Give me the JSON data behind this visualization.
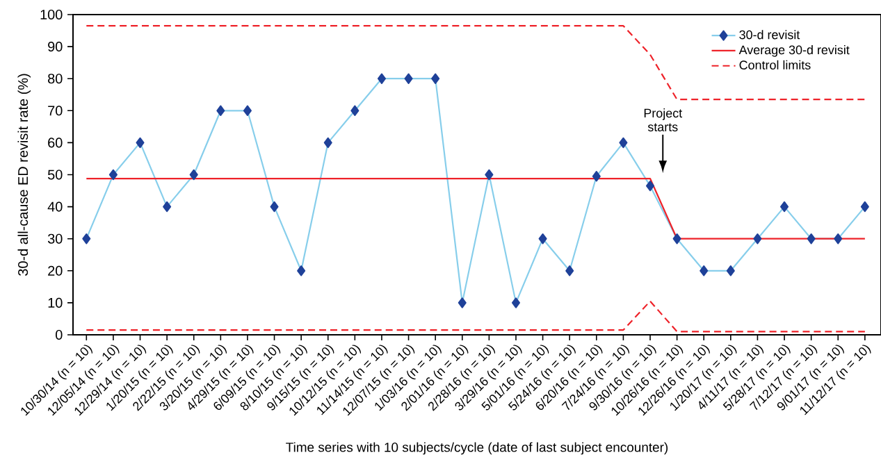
{
  "chart_data": {
    "type": "line",
    "xlabel": "Time series with 10 subjects/cycle (date of last subject encounter)",
    "ylabel": "30-d all-cause ED revisit rate (%)",
    "categories": [
      "10/30/14 (n = 10)",
      "12/05/14 (n = 10)",
      "12/29/14 (n = 10)",
      "1/20/15 (n = 10)",
      "2/22/15 (n = 10)",
      "3/20/15 (n = 10)",
      "4/29/15 (n = 10)",
      "6/09/15 (n = 10)",
      "8/10/15 (n = 10)",
      "9/15/15 (n = 10)",
      "10/12/15 (n = 10)",
      "11/14/15 (n = 10)",
      "12/07/15 (n = 10)",
      "1/03/16 (n = 10)",
      "2/01/16 (n = 10)",
      "2/28/16 (n = 10)",
      "3/29/16 (n = 10)",
      "5/01/16 (n = 10)",
      "5/24/16 (n = 10)",
      "6/20/16 (n = 10)",
      "7/24/16 (n = 10)",
      "9/30/16 (n = 10)",
      "10/26/16 (n = 10)",
      "12/26/16 (n = 10)",
      "1/20/17 (n = 10)",
      "4/11/17 (n = 10)",
      "5/28/17 (n = 10)",
      "7/12/17 (n = 10)",
      "9/01/17 (n = 10)",
      "11/12/17 (n = 10)"
    ],
    "series": [
      {
        "name": "30-d revisit",
        "color": "#87ceeb",
        "marker": "diamond",
        "values": [
          30,
          50,
          60,
          40,
          50,
          70,
          70,
          40,
          20,
          60,
          70,
          80,
          80,
          80,
          10,
          50,
          10,
          30,
          20,
          49.5,
          60,
          46.5,
          30,
          20,
          20,
          30,
          40,
          30,
          30,
          40
        ]
      },
      {
        "name": "Average 30-d revisit",
        "color": "#ee2229",
        "values": [
          48.8,
          48.8,
          48.8,
          48.8,
          48.8,
          48.8,
          48.8,
          48.8,
          48.8,
          48.8,
          48.8,
          48.8,
          48.8,
          48.8,
          48.8,
          48.8,
          48.8,
          48.8,
          48.8,
          48.8,
          48.8,
          48.8,
          30,
          30,
          30,
          30,
          30,
          30,
          30,
          30
        ]
      },
      {
        "name": "Control limits",
        "color": "#ee2229",
        "line_style": "dashed",
        "values": [
          96.5,
          96.5,
          96.5,
          96.5,
          96.5,
          96.5,
          96.5,
          96.5,
          96.5,
          96.5,
          96.5,
          96.5,
          96.5,
          96.5,
          96.5,
          96.5,
          96.5,
          96.5,
          96.5,
          96.5,
          96.5,
          87.5,
          73.5,
          73.5,
          73.5,
          73.5,
          73.5,
          73.5,
          73.5,
          73.5
        ]
      },
      {
        "color": "#ee2229",
        "line_style": "dashed",
        "values": [
          1.5,
          1.5,
          1.5,
          1.5,
          1.5,
          1.5,
          1.5,
          1.5,
          1.5,
          1.5,
          1.5,
          1.5,
          1.5,
          1.5,
          1.5,
          1.5,
          1.5,
          1.5,
          1.5,
          1.5,
          1.5,
          10.5,
          1,
          1,
          1,
          1,
          1,
          1,
          1,
          1
        ]
      }
    ],
    "ylim": [
      0,
      100
    ],
    "yticks": [
      0,
      10,
      20,
      30,
      40,
      50,
      60,
      70,
      80,
      90,
      100
    ],
    "annotations": [
      "Project starts"
    ],
    "legend": "top right",
    "grid": false
  }
}
